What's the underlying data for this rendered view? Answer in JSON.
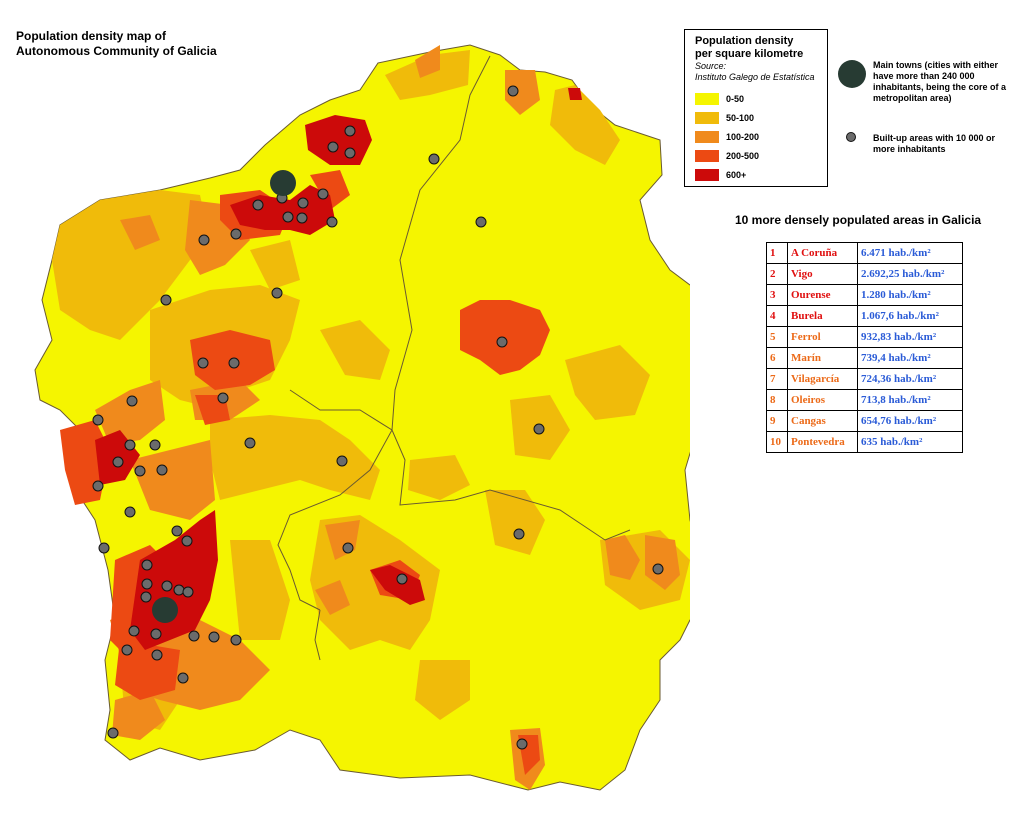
{
  "title": {
    "line1": "Population density map of",
    "line2": "Autonomous Community of Galicia"
  },
  "legend": {
    "title_line1": "Population density",
    "title_line2": "per square kilometre",
    "source_label": "Source:",
    "source": "Instituto Galego de Estatística",
    "classes": [
      {
        "label": "0-50",
        "color": "#f5f500"
      },
      {
        "label": "50-100",
        "color": "#f0bb0a"
      },
      {
        "label": "100-200",
        "color": "#f08a1c"
      },
      {
        "label": "200-500",
        "color": "#ec4a13"
      },
      {
        "label": "600+",
        "color": "#cc0a0a"
      }
    ],
    "main_towns": "Main towns (cities with either have more than 240 000 inhabitants, being the core of a metropolitan area)",
    "built_up": "Built-up areas with 10 000 or more inhabitants"
  },
  "ranking": {
    "title": "10 more densely populated areas in Galicia",
    "rows": [
      {
        "rank": "1",
        "name": "A Coruña",
        "value": "6.471 hab./km²",
        "color": "#e01010"
      },
      {
        "rank": "2",
        "name": "Vigo",
        "value": "2.692,25 hab./km²",
        "color": "#e01010"
      },
      {
        "rank": "3",
        "name": "Ourense",
        "value": "1.280 hab./km²",
        "color": "#e01010"
      },
      {
        "rank": "4",
        "name": "Burela",
        "value": "1.067,6 hab./km²",
        "color": "#e01010"
      },
      {
        "rank": "5",
        "name": "Ferrol",
        "value": "932,83 hab./km²",
        "color": "#ec6a18"
      },
      {
        "rank": "6",
        "name": "Marín",
        "value": "739,4 hab./km²",
        "color": "#ec6a18"
      },
      {
        "rank": "7",
        "name": "Vilagarcía",
        "value": "724,36 hab./km²",
        "color": "#ec6a18"
      },
      {
        "rank": "8",
        "name": "Oleiros",
        "value": "713,8 hab./km²",
        "color": "#ec6a18"
      },
      {
        "rank": "9",
        "name": "Cangas",
        "value": "654,76 hab./km²",
        "color": "#ec6a18"
      },
      {
        "rank": "10",
        "name": "Pontevedra",
        "value": "635 hab./km²",
        "color": "#ec6a18"
      }
    ]
  },
  "map": {
    "border_color": "#6a5a30",
    "main_town_color": "#273b33",
    "built_up_color": "#6b6b6b"
  }
}
